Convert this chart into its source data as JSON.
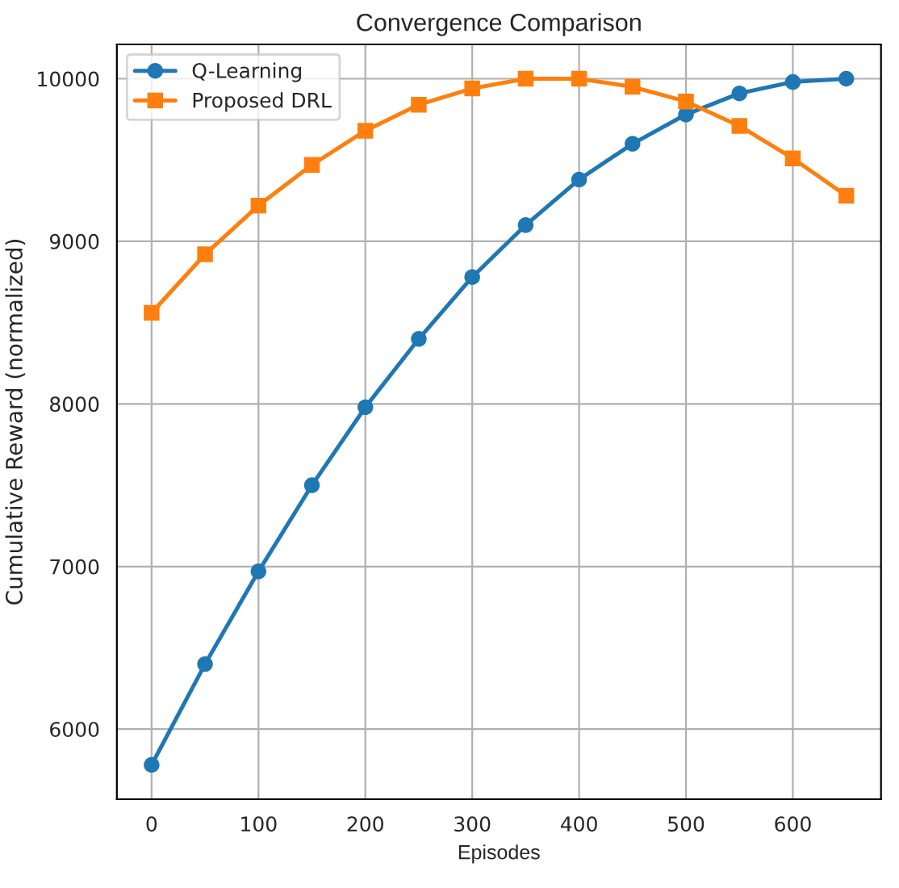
{
  "chart_data": {
    "type": "line",
    "title": "Convergence Comparison",
    "xlabel": "Episodes",
    "ylabel": "Cumulative Reward (normalized)",
    "x": [
      0,
      50,
      100,
      150,
      200,
      250,
      300,
      350,
      400,
      450,
      500,
      550,
      600,
      650
    ],
    "series": [
      {
        "name": "Q-Learning",
        "color": "#1f77b4",
        "marker": "circle",
        "values": [
          5780,
          6400,
          6970,
          7500,
          7980,
          8400,
          8780,
          9100,
          9380,
          9600,
          9780,
          9910,
          9980,
          10000
        ]
      },
      {
        "name": "Proposed DRL",
        "color": "#ff7f0e",
        "marker": "square",
        "values": [
          8560,
          8920,
          9220,
          9470,
          9680,
          9840,
          9940,
          10000,
          10000,
          9950,
          9860,
          9710,
          9510,
          9280
        ]
      }
    ],
    "xlim": [
      -32.5,
      682.5
    ],
    "ylim": [
      5569,
      10211
    ],
    "xticks": [
      0,
      100,
      200,
      300,
      400,
      500,
      600
    ],
    "yticks": [
      6000,
      7000,
      8000,
      9000,
      10000
    ],
    "grid": true,
    "legend": "top left",
    "line_style": "solid"
  }
}
